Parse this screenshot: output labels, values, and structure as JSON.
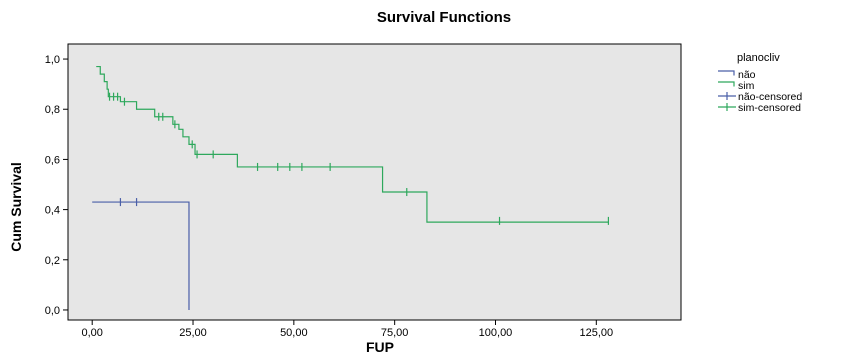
{
  "chart_data": {
    "type": "line",
    "title": "Survival Functions",
    "xlabel": "FUP",
    "ylabel": "Cum Survival",
    "xlim": [
      -6,
      146
    ],
    "ylim": [
      -0.04,
      1.06
    ],
    "xticks": [
      0,
      25,
      50,
      75,
      100,
      125
    ],
    "xtick_labels": [
      "0,00",
      "25,00",
      "50,00",
      "75,00",
      "100,00",
      "125,00"
    ],
    "yticks": [
      0,
      0.2,
      0.4,
      0.6,
      0.8,
      1.0
    ],
    "ytick_labels": [
      "0,0",
      "0,2",
      "0,4",
      "0,6",
      "0,8",
      "1,0"
    ],
    "grid": false,
    "plot_background": "#e6e6e6",
    "legend": {
      "title": "planocliv",
      "placement": "right",
      "entries": [
        {
          "label": "não",
          "kind": "step",
          "color": "#4a5fa8"
        },
        {
          "label": "sim",
          "kind": "step",
          "color": "#2ea85c"
        },
        {
          "label": "não-censored",
          "kind": "censor",
          "color": "#4a5fa8"
        },
        {
          "label": "sim-censored",
          "kind": "censor",
          "color": "#2ea85c"
        }
      ]
    },
    "series": [
      {
        "name": "não",
        "color": "#4a5fa8",
        "steps": [
          [
            0,
            0.43
          ],
          [
            24,
            0.0
          ]
        ],
        "censored": [
          [
            7,
            0.43
          ],
          [
            11,
            0.43
          ]
        ]
      },
      {
        "name": "sim",
        "color": "#2ea85c",
        "steps": [
          [
            1,
            0.97
          ],
          [
            2,
            0.94
          ],
          [
            3,
            0.91
          ],
          [
            3.7,
            0.88
          ],
          [
            4,
            0.85
          ],
          [
            7,
            0.83
          ],
          [
            11,
            0.8
          ],
          [
            15.5,
            0.77
          ],
          [
            20,
            0.74
          ],
          [
            21.5,
            0.72
          ],
          [
            22.5,
            0.69
          ],
          [
            24,
            0.66
          ],
          [
            25.5,
            0.62
          ],
          [
            36,
            0.57
          ],
          [
            72,
            0.47
          ],
          [
            83,
            0.35
          ],
          [
            128,
            0.35
          ]
        ],
        "censored": [
          [
            4.3,
            0.85
          ],
          [
            5.3,
            0.85
          ],
          [
            6.3,
            0.85
          ],
          [
            8,
            0.83
          ],
          [
            16.5,
            0.77
          ],
          [
            17.5,
            0.77
          ],
          [
            20.5,
            0.74
          ],
          [
            24.8,
            0.66
          ],
          [
            26,
            0.62
          ],
          [
            30,
            0.62
          ],
          [
            41,
            0.57
          ],
          [
            46,
            0.57
          ],
          [
            49,
            0.57
          ],
          [
            52,
            0.57
          ],
          [
            59,
            0.57
          ],
          [
            78,
            0.47
          ],
          [
            101,
            0.355
          ],
          [
            128,
            0.355
          ]
        ]
      }
    ]
  }
}
